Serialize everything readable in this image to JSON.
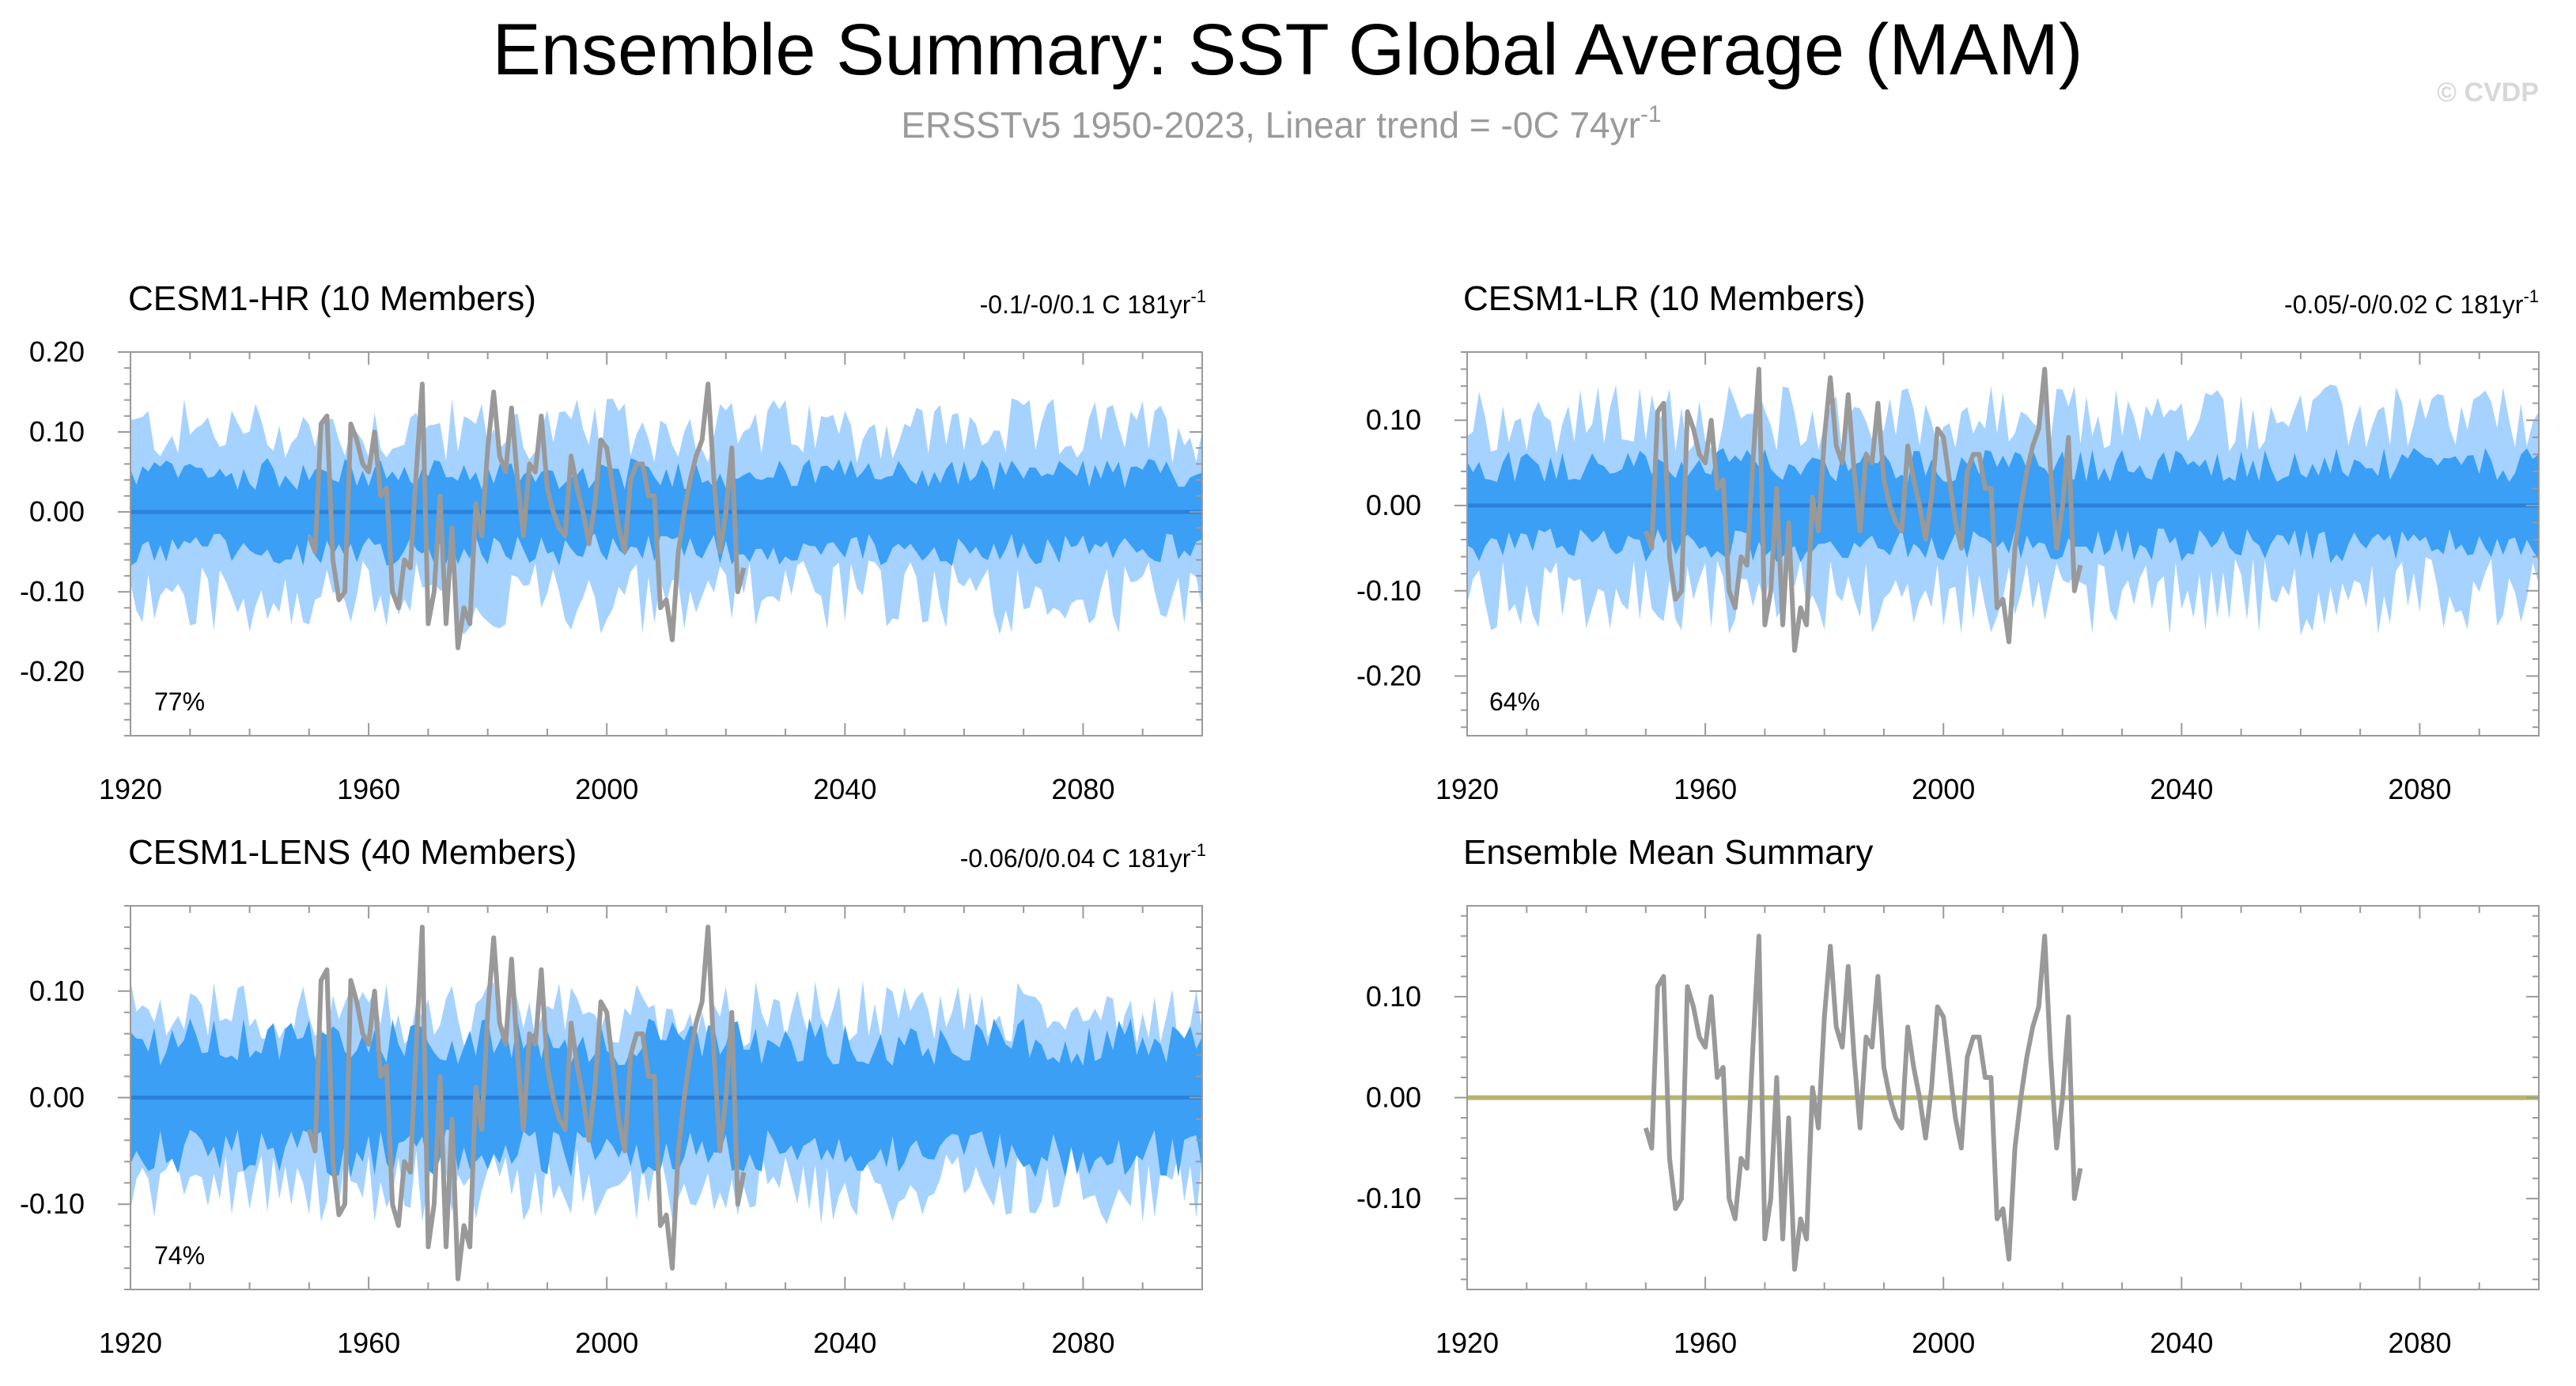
{
  "title": "Ensemble Summary: SST Global Average (MAM)",
  "subtitle": {
    "prefix": "ERSSTv5 1950-2023, Linear trend = -0C 74yr",
    "superscript": "-1"
  },
  "watermark": "© CVDP",
  "colors": {
    "outer_band": "#a6d2ff",
    "inner_band": "#3a9ff5",
    "ensemble_mean_line": "#2a82d8",
    "observations": "#999999",
    "summary_line": "#b5b56e",
    "frame": "#9a9a9a"
  },
  "chart_data": [
    {
      "id": "p1",
      "type": "area",
      "title": "CESM1-HR (10 Members)",
      "title_color": "#1d6f9b",
      "trend": {
        "prefix": "-0.1/-0/0.1 C 181yr",
        "superscript": "-1"
      },
      "percent_label": "77%",
      "xlim": [
        1920,
        2100
      ],
      "ylim": [
        -0.28,
        0.2
      ],
      "xticks": [
        "1920",
        "1960",
        "2000",
        "2040",
        "2080"
      ],
      "yticks": [
        {
          "value": 0.2,
          "label": "0.20"
        },
        {
          "value": 0.1,
          "label": "0.10"
        },
        {
          "value": 0.0,
          "label": "0.00"
        },
        {
          "value": -0.1,
          "label": "-0.10"
        },
        {
          "value": -0.2,
          "label": "-0.20"
        }
      ],
      "series": [
        {
          "name": "ensemble min/max range",
          "style": "outer_band"
        },
        {
          "name": "ensemble 25-75% range",
          "style": "inner_band"
        },
        {
          "name": "ensemble mean",
          "values": "0.00 (1920-2100)"
        },
        {
          "name": "ERSSTv5 observations",
          "start_year": 1950,
          "values": [
            -0.03,
            -0.05,
            0.11,
            0.12,
            -0.06,
            -0.11,
            -0.1,
            0.11,
            0.09,
            0.06,
            0.05,
            0.1,
            0.02,
            0.03,
            -0.1,
            -0.12,
            -0.06,
            -0.07,
            0.05,
            0.16,
            -0.14,
            -0.1,
            0.02,
            -0.14,
            -0.02,
            -0.17,
            -0.12,
            -0.14,
            0.01,
            -0.03,
            0.08,
            0.15,
            0.07,
            0.05,
            0.13,
            0.04,
            -0.03,
            0.06,
            0.05,
            0.12,
            0.03,
            0.0,
            -0.02,
            -0.03,
            0.07,
            0.03,
            0.0,
            -0.04,
            0.01,
            0.09,
            0.08,
            0.03,
            -0.02,
            -0.05,
            0.04,
            0.06,
            0.06,
            0.02,
            0.02,
            -0.12,
            -0.11,
            -0.16,
            -0.05,
            0.0,
            0.04,
            0.07,
            0.09,
            0.16,
            0.04,
            -0.05,
            0.0,
            0.08,
            -0.1,
            -0.07
          ]
        }
      ]
    },
    {
      "id": "p2",
      "type": "area",
      "title": "CESM1-LR (10 Members)",
      "title_color": "#5e8a5e",
      "trend": {
        "prefix": "-0.05/-0/0.02 C 181yr",
        "superscript": "-1"
      },
      "percent_label": "64%",
      "xlim": [
        1920,
        2100
      ],
      "ylim": [
        -0.27,
        0.18
      ],
      "xticks": [
        "1920",
        "1960",
        "2000",
        "2040",
        "2080"
      ],
      "yticks": [
        {
          "value": 0.1,
          "label": "0.10"
        },
        {
          "value": 0.0,
          "label": "0.00"
        },
        {
          "value": -0.1,
          "label": "-0.10"
        },
        {
          "value": -0.2,
          "label": "-0.20"
        }
      ],
      "series": [
        {
          "name": "ensemble min/max range",
          "style": "outer_band"
        },
        {
          "name": "ensemble 25-75% range",
          "style": "inner_band"
        },
        {
          "name": "ensemble mean",
          "values": "0.00 (1920-2100)"
        },
        {
          "name": "ERSSTv5 observations",
          "start_year": 1950,
          "values": [
            -0.03,
            -0.05,
            0.11,
            0.12,
            -0.06,
            -0.11,
            -0.1,
            0.11,
            0.09,
            0.06,
            0.05,
            0.1,
            0.02,
            0.03,
            -0.1,
            -0.12,
            -0.06,
            -0.07,
            0.05,
            0.16,
            -0.14,
            -0.1,
            0.02,
            -0.14,
            -0.02,
            -0.17,
            -0.12,
            -0.14,
            0.01,
            -0.03,
            0.08,
            0.15,
            0.07,
            0.05,
            0.13,
            0.04,
            -0.03,
            0.06,
            0.05,
            0.12,
            0.03,
            0.0,
            -0.02,
            -0.03,
            0.07,
            0.03,
            0.0,
            -0.04,
            0.01,
            0.09,
            0.08,
            0.03,
            -0.02,
            -0.05,
            0.04,
            0.06,
            0.06,
            0.02,
            0.02,
            -0.12,
            -0.11,
            -0.16,
            -0.05,
            0.0,
            0.04,
            0.07,
            0.09,
            0.16,
            0.04,
            -0.05,
            0.0,
            0.08,
            -0.1,
            -0.07
          ]
        }
      ]
    },
    {
      "id": "p3",
      "type": "area",
      "title": "CESM1-LENS (40 Members)",
      "title_color": "#c9c07c",
      "trend": {
        "prefix": "-0.06/0/0.04 C 181yr",
        "superscript": "-1"
      },
      "percent_label": "74%",
      "xlim": [
        1920,
        2100
      ],
      "ylim": [
        -0.18,
        0.18
      ],
      "xticks": [
        "1920",
        "1960",
        "2000",
        "2040",
        "2080"
      ],
      "yticks": [
        {
          "value": 0.1,
          "label": "0.10"
        },
        {
          "value": 0.0,
          "label": "0.00"
        },
        {
          "value": -0.1,
          "label": "-0.10"
        }
      ],
      "series": [
        {
          "name": "ensemble min/max range",
          "style": "outer_band"
        },
        {
          "name": "ensemble 25-75% range",
          "style": "inner_band"
        },
        {
          "name": "ensemble mean",
          "values": "0.00 (1920-2100)"
        },
        {
          "name": "ERSSTv5 observations",
          "start_year": 1950,
          "values": [
            -0.03,
            -0.05,
            0.11,
            0.12,
            -0.06,
            -0.11,
            -0.1,
            0.11,
            0.09,
            0.06,
            0.05,
            0.1,
            0.02,
            0.03,
            -0.1,
            -0.12,
            -0.06,
            -0.07,
            0.05,
            0.16,
            -0.14,
            -0.1,
            0.02,
            -0.14,
            -0.02,
            -0.17,
            -0.12,
            -0.14,
            0.01,
            -0.03,
            0.08,
            0.15,
            0.07,
            0.05,
            0.13,
            0.04,
            -0.03,
            0.06,
            0.05,
            0.12,
            0.03,
            0.0,
            -0.02,
            -0.03,
            0.07,
            0.03,
            0.0,
            -0.04,
            0.01,
            0.09,
            0.08,
            0.03,
            -0.02,
            -0.05,
            0.04,
            0.06,
            0.06,
            0.02,
            0.02,
            -0.12,
            -0.11,
            -0.16,
            -0.05,
            0.0,
            0.04,
            0.07,
            0.09,
            0.16,
            0.04,
            -0.05,
            0.0,
            0.08,
            -0.1,
            -0.07
          ]
        }
      ]
    },
    {
      "id": "p4",
      "type": "line",
      "title": "Ensemble Mean Summary",
      "title_color": "#000000",
      "xlim": [
        1920,
        2100
      ],
      "ylim": [
        -0.19,
        0.19
      ],
      "xticks": [
        "1920",
        "1960",
        "2000",
        "2040",
        "2080"
      ],
      "yticks": [
        {
          "value": 0.1,
          "label": "0.10"
        },
        {
          "value": 0.0,
          "label": "0.00"
        },
        {
          "value": -0.1,
          "label": "-0.10"
        }
      ],
      "series": [
        {
          "name": "ensemble means",
          "values": "0.00 (1920-2100)"
        },
        {
          "name": "ERSSTv5 observations",
          "start_year": 1950,
          "values": [
            -0.03,
            -0.05,
            0.11,
            0.12,
            -0.06,
            -0.11,
            -0.1,
            0.11,
            0.09,
            0.06,
            0.05,
            0.1,
            0.02,
            0.03,
            -0.1,
            -0.12,
            -0.06,
            -0.07,
            0.05,
            0.16,
            -0.14,
            -0.1,
            0.02,
            -0.14,
            -0.02,
            -0.17,
            -0.12,
            -0.14,
            0.01,
            -0.03,
            0.08,
            0.15,
            0.07,
            0.05,
            0.13,
            0.04,
            -0.03,
            0.06,
            0.05,
            0.12,
            0.03,
            0.0,
            -0.02,
            -0.03,
            0.07,
            0.03,
            0.0,
            -0.04,
            0.01,
            0.09,
            0.08,
            0.03,
            -0.02,
            -0.05,
            0.04,
            0.06,
            0.06,
            0.02,
            0.02,
            -0.12,
            -0.11,
            -0.16,
            -0.05,
            0.0,
            0.04,
            0.07,
            0.09,
            0.16,
            0.04,
            -0.05,
            0.0,
            0.08,
            -0.1,
            -0.07
          ]
        }
      ]
    }
  ]
}
